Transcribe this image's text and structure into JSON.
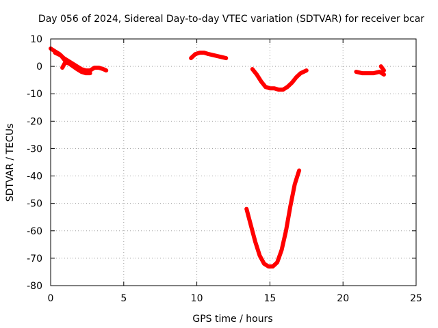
{
  "chart_data": {
    "type": "scatter",
    "title": "Day 056 of 2024, Sidereal Day-to-day VTEC variation (SDTVAR) for receiver bcar",
    "xlabel": "GPS time / hours",
    "ylabel": "SDTVAR / TECUs",
    "xlim": [
      0,
      25
    ],
    "ylim": [
      -80,
      10
    ],
    "xticks": [
      0,
      5,
      10,
      15,
      20,
      25
    ],
    "yticks": [
      10,
      0,
      -10,
      -20,
      -30,
      -40,
      -50,
      -60,
      -70,
      -80
    ],
    "grid": true,
    "legend": "none",
    "color": "#ff0000",
    "series": [
      {
        "x": [
          0.0,
          0.3,
          0.6,
          0.9,
          1.2,
          1.5,
          1.8,
          2.1,
          2.4,
          2.7,
          3.0,
          3.3,
          3.6,
          3.8
        ],
        "y": [
          6.5,
          5.5,
          4.5,
          3,
          2,
          1,
          0,
          -1,
          -1.5,
          -1.5,
          -0.5,
          -0.5,
          -1,
          -1.5
        ]
      },
      {
        "x": [
          0.3,
          0.7,
          1.0,
          1.4,
          1.8,
          2.1,
          2.4,
          2.7
        ],
        "y": [
          5,
          4,
          2,
          0.5,
          -1,
          -2,
          -2.5,
          -2.5
        ]
      },
      {
        "x": [
          0.8,
          1.0,
          1.3,
          1.6,
          1.9,
          2.2,
          2.5
        ],
        "y": [
          -0.5,
          1.5,
          1,
          0,
          -1,
          -1.5,
          -2
        ]
      },
      {
        "x": [
          9.6,
          9.9,
          10.2,
          10.5,
          10.8,
          11.2,
          11.6,
          12.0
        ],
        "y": [
          3,
          4.5,
          5,
          5,
          4.5,
          4,
          3.5,
          3
        ]
      },
      {
        "x": [
          13.8,
          14.1,
          14.4,
          14.7,
          15.0,
          15.3,
          15.6,
          15.9,
          16.2,
          16.5,
          16.8,
          17.1,
          17.5
        ],
        "y": [
          -1,
          -3,
          -5.5,
          -7.5,
          -8,
          -8,
          -8.5,
          -8.5,
          -7.5,
          -6,
          -4,
          -2.5,
          -1.5
        ]
      },
      {
        "x": [
          20.9,
          21.3,
          21.7,
          22.1,
          22.5,
          22.8
        ],
        "y": [
          -2,
          -2.5,
          -2.5,
          -2.5,
          -2,
          -3
        ]
      },
      {
        "x": [
          22.6,
          22.8
        ],
        "y": [
          0,
          -1.5
        ]
      },
      {
        "x": [
          13.4,
          13.7,
          14.0,
          14.3,
          14.6,
          14.9,
          15.2,
          15.5,
          15.8,
          16.1,
          16.4,
          16.7,
          17.0
        ],
        "y": [
          -52,
          -58,
          -64,
          -69,
          -72,
          -73,
          -73,
          -71.5,
          -67,
          -60,
          -51,
          -43,
          -38
        ]
      }
    ]
  }
}
